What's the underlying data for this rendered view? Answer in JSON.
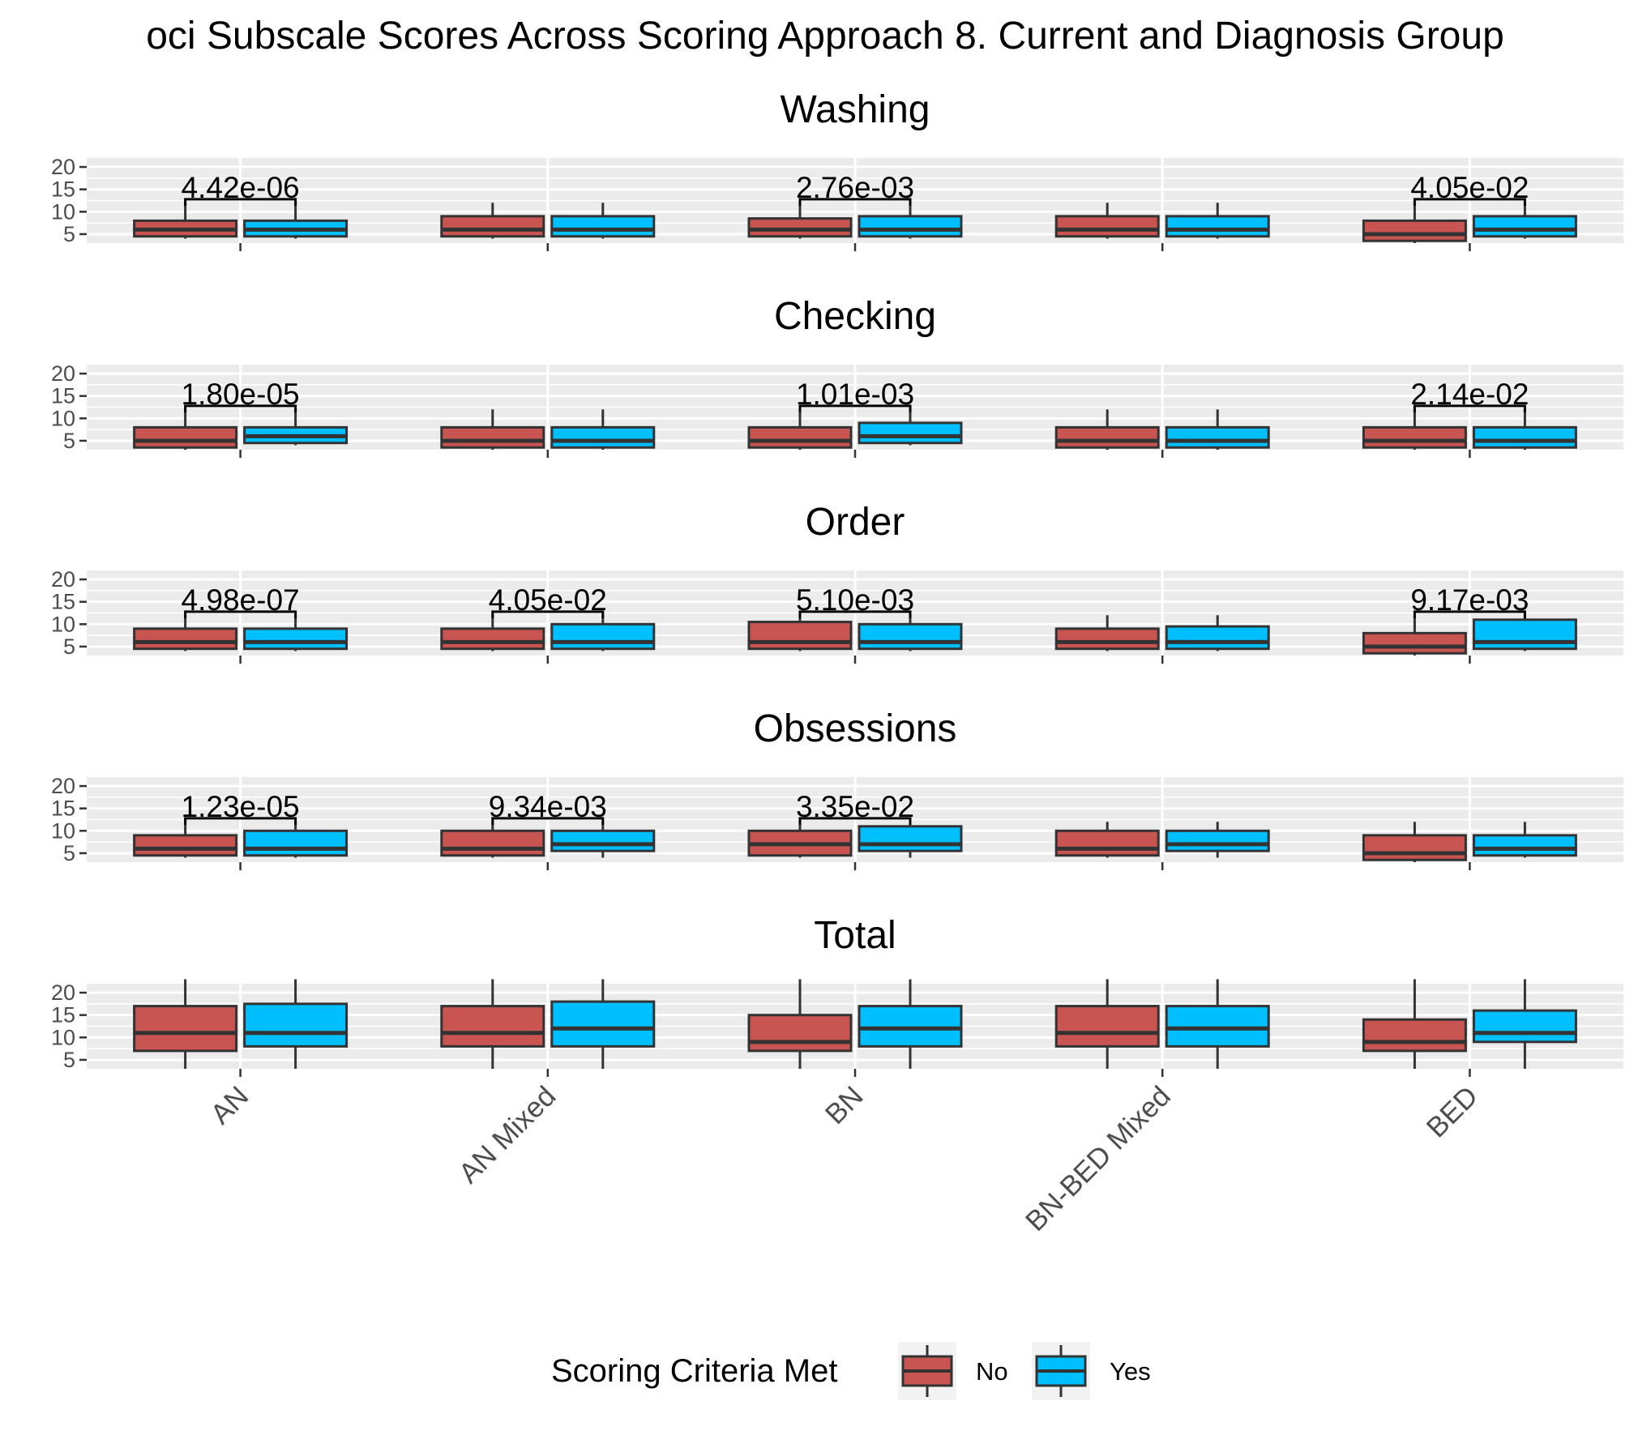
{
  "chart_data": {
    "type": "boxplot",
    "title": "oci Subscale Scores Across Scoring Approach 8. Current and Diagnosis Group",
    "categories": [
      "AN",
      "AN Mixed",
      "BN",
      "BN-BED Mixed",
      "BED"
    ],
    "yticks": [
      5,
      10,
      15,
      20
    ],
    "ylim": [
      3,
      22
    ],
    "grid": true,
    "legend": {
      "title": "Scoring Criteria Met",
      "position": "bottom",
      "entries": [
        {
          "name": "No",
          "color": "#c85551"
        },
        {
          "name": "Yes",
          "color": "#00bfff"
        }
      ]
    },
    "panels": [
      {
        "name": "Washing",
        "no": [
          [
            4,
            4.5,
            6,
            8,
            12
          ],
          [
            4,
            4.5,
            6,
            9,
            12
          ],
          [
            4,
            4.5,
            6,
            8.5,
            12
          ],
          [
            4,
            4.5,
            6,
            9,
            12
          ],
          [
            3,
            3.5,
            5,
            8,
            12
          ]
        ],
        "yes": [
          [
            4,
            4.5,
            6,
            8,
            12
          ],
          [
            4,
            4.5,
            6,
            9,
            12
          ],
          [
            4,
            4.5,
            6,
            9,
            12
          ],
          [
            4,
            4.5,
            6,
            9,
            12
          ],
          [
            4,
            4.5,
            6,
            9,
            12
          ]
        ],
        "pvalues": [
          "4.42e-06",
          "",
          "2.76e-03",
          "",
          "4.05e-02"
        ]
      },
      {
        "name": "Checking",
        "no": [
          [
            3,
            3.5,
            5,
            8,
            12
          ],
          [
            3,
            3.5,
            5,
            8,
            12
          ],
          [
            3,
            3.5,
            5,
            8,
            12
          ],
          [
            3,
            3.5,
            5,
            8,
            12
          ],
          [
            3,
            3.5,
            5,
            8,
            12
          ]
        ],
        "yes": [
          [
            4,
            4.5,
            6,
            8,
            12
          ],
          [
            3,
            3.5,
            5,
            8,
            12
          ],
          [
            4,
            4.5,
            6,
            9,
            12
          ],
          [
            3,
            3.5,
            5,
            8,
            12
          ],
          [
            3,
            3.5,
            5,
            8,
            12
          ]
        ],
        "pvalues": [
          "1.80e-05",
          "",
          "1.01e-03",
          "",
          "2.14e-02"
        ]
      },
      {
        "name": "Order",
        "no": [
          [
            4,
            4.5,
            6,
            9,
            12
          ],
          [
            4,
            4.5,
            6,
            9,
            12
          ],
          [
            4,
            4.5,
            6,
            10.5,
            12
          ],
          [
            4,
            4.5,
            6,
            9,
            12
          ],
          [
            3,
            3.5,
            5,
            8,
            12
          ]
        ],
        "yes": [
          [
            4,
            4.5,
            6,
            9,
            12
          ],
          [
            4,
            4.5,
            6,
            10,
            12
          ],
          [
            4,
            4.5,
            6,
            10,
            12
          ],
          [
            4,
            4.5,
            6,
            9.5,
            12
          ],
          [
            4,
            4.5,
            6,
            11,
            12
          ]
        ],
        "pvalues": [
          "4.98e-07",
          "4.05e-02",
          "5.10e-03",
          "",
          "9.17e-03"
        ]
      },
      {
        "name": "Obsessions",
        "no": [
          [
            4,
            4.5,
            6,
            9,
            12
          ],
          [
            4,
            4.5,
            6,
            10,
            12
          ],
          [
            4,
            4.5,
            7,
            10,
            12
          ],
          [
            4,
            4.5,
            6,
            10,
            12
          ],
          [
            3,
            3.5,
            5,
            9,
            12
          ]
        ],
        "yes": [
          [
            4,
            4.5,
            6,
            10,
            12
          ],
          [
            4,
            5.5,
            7,
            10,
            12
          ],
          [
            4,
            5.5,
            7,
            11,
            12
          ],
          [
            4,
            5.5,
            7,
            10,
            12
          ],
          [
            4,
            4.5,
            6,
            9,
            12
          ]
        ],
        "pvalues": [
          "1.23e-05",
          "9.34e-03",
          "3.35e-02",
          "",
          ""
        ]
      },
      {
        "name": "Total",
        "no": [
          [
            3,
            7,
            11,
            17,
            23
          ],
          [
            3,
            8,
            11,
            17,
            23
          ],
          [
            3,
            7,
            9,
            15,
            23
          ],
          [
            3,
            8,
            11,
            17,
            23
          ],
          [
            3,
            7,
            9,
            14,
            23
          ]
        ],
        "yes": [
          [
            3,
            8,
            11,
            17.5,
            23
          ],
          [
            3,
            8,
            12,
            18,
            23
          ],
          [
            3,
            8,
            12,
            17,
            23
          ],
          [
            3,
            8,
            12,
            17,
            23
          ],
          [
            3,
            9,
            11,
            16,
            23
          ]
        ],
        "pvalues": [
          "",
          "",
          "",
          "",
          ""
        ]
      }
    ]
  }
}
